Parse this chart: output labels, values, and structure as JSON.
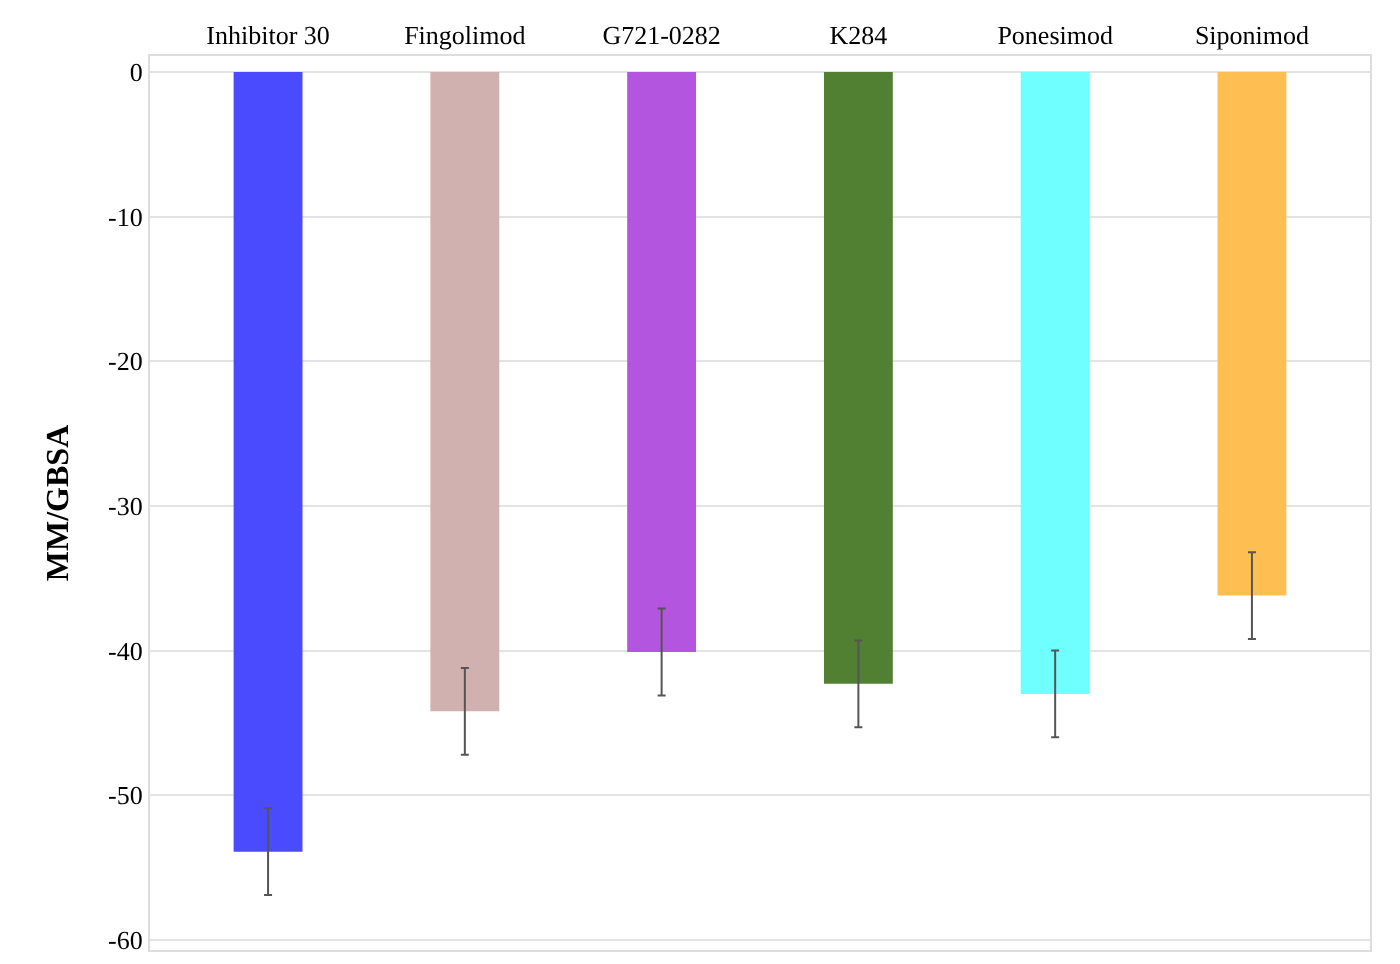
{
  "chart_data": {
    "type": "bar",
    "ylabel": "MM/GBSA",
    "categories": [
      "Inhibitor 30",
      "Fingolimod",
      "G721-0282",
      "K284",
      "Ponesimod",
      "Siponimod"
    ],
    "values": [
      -53.9,
      -44.2,
      -40.1,
      -42.3,
      -43.0,
      -36.2
    ],
    "errors": [
      3,
      3,
      3,
      3,
      3,
      3
    ],
    "colors": [
      "#4a4aff",
      "#d1b0b0",
      "#b455e0",
      "#518033",
      "#70ffff",
      "#ffbe52"
    ],
    "ylim": [
      -60.7,
      1.1
    ],
    "yticks": [
      0,
      -10,
      -20,
      -30,
      -40,
      -50,
      -60
    ],
    "grid": "y"
  }
}
